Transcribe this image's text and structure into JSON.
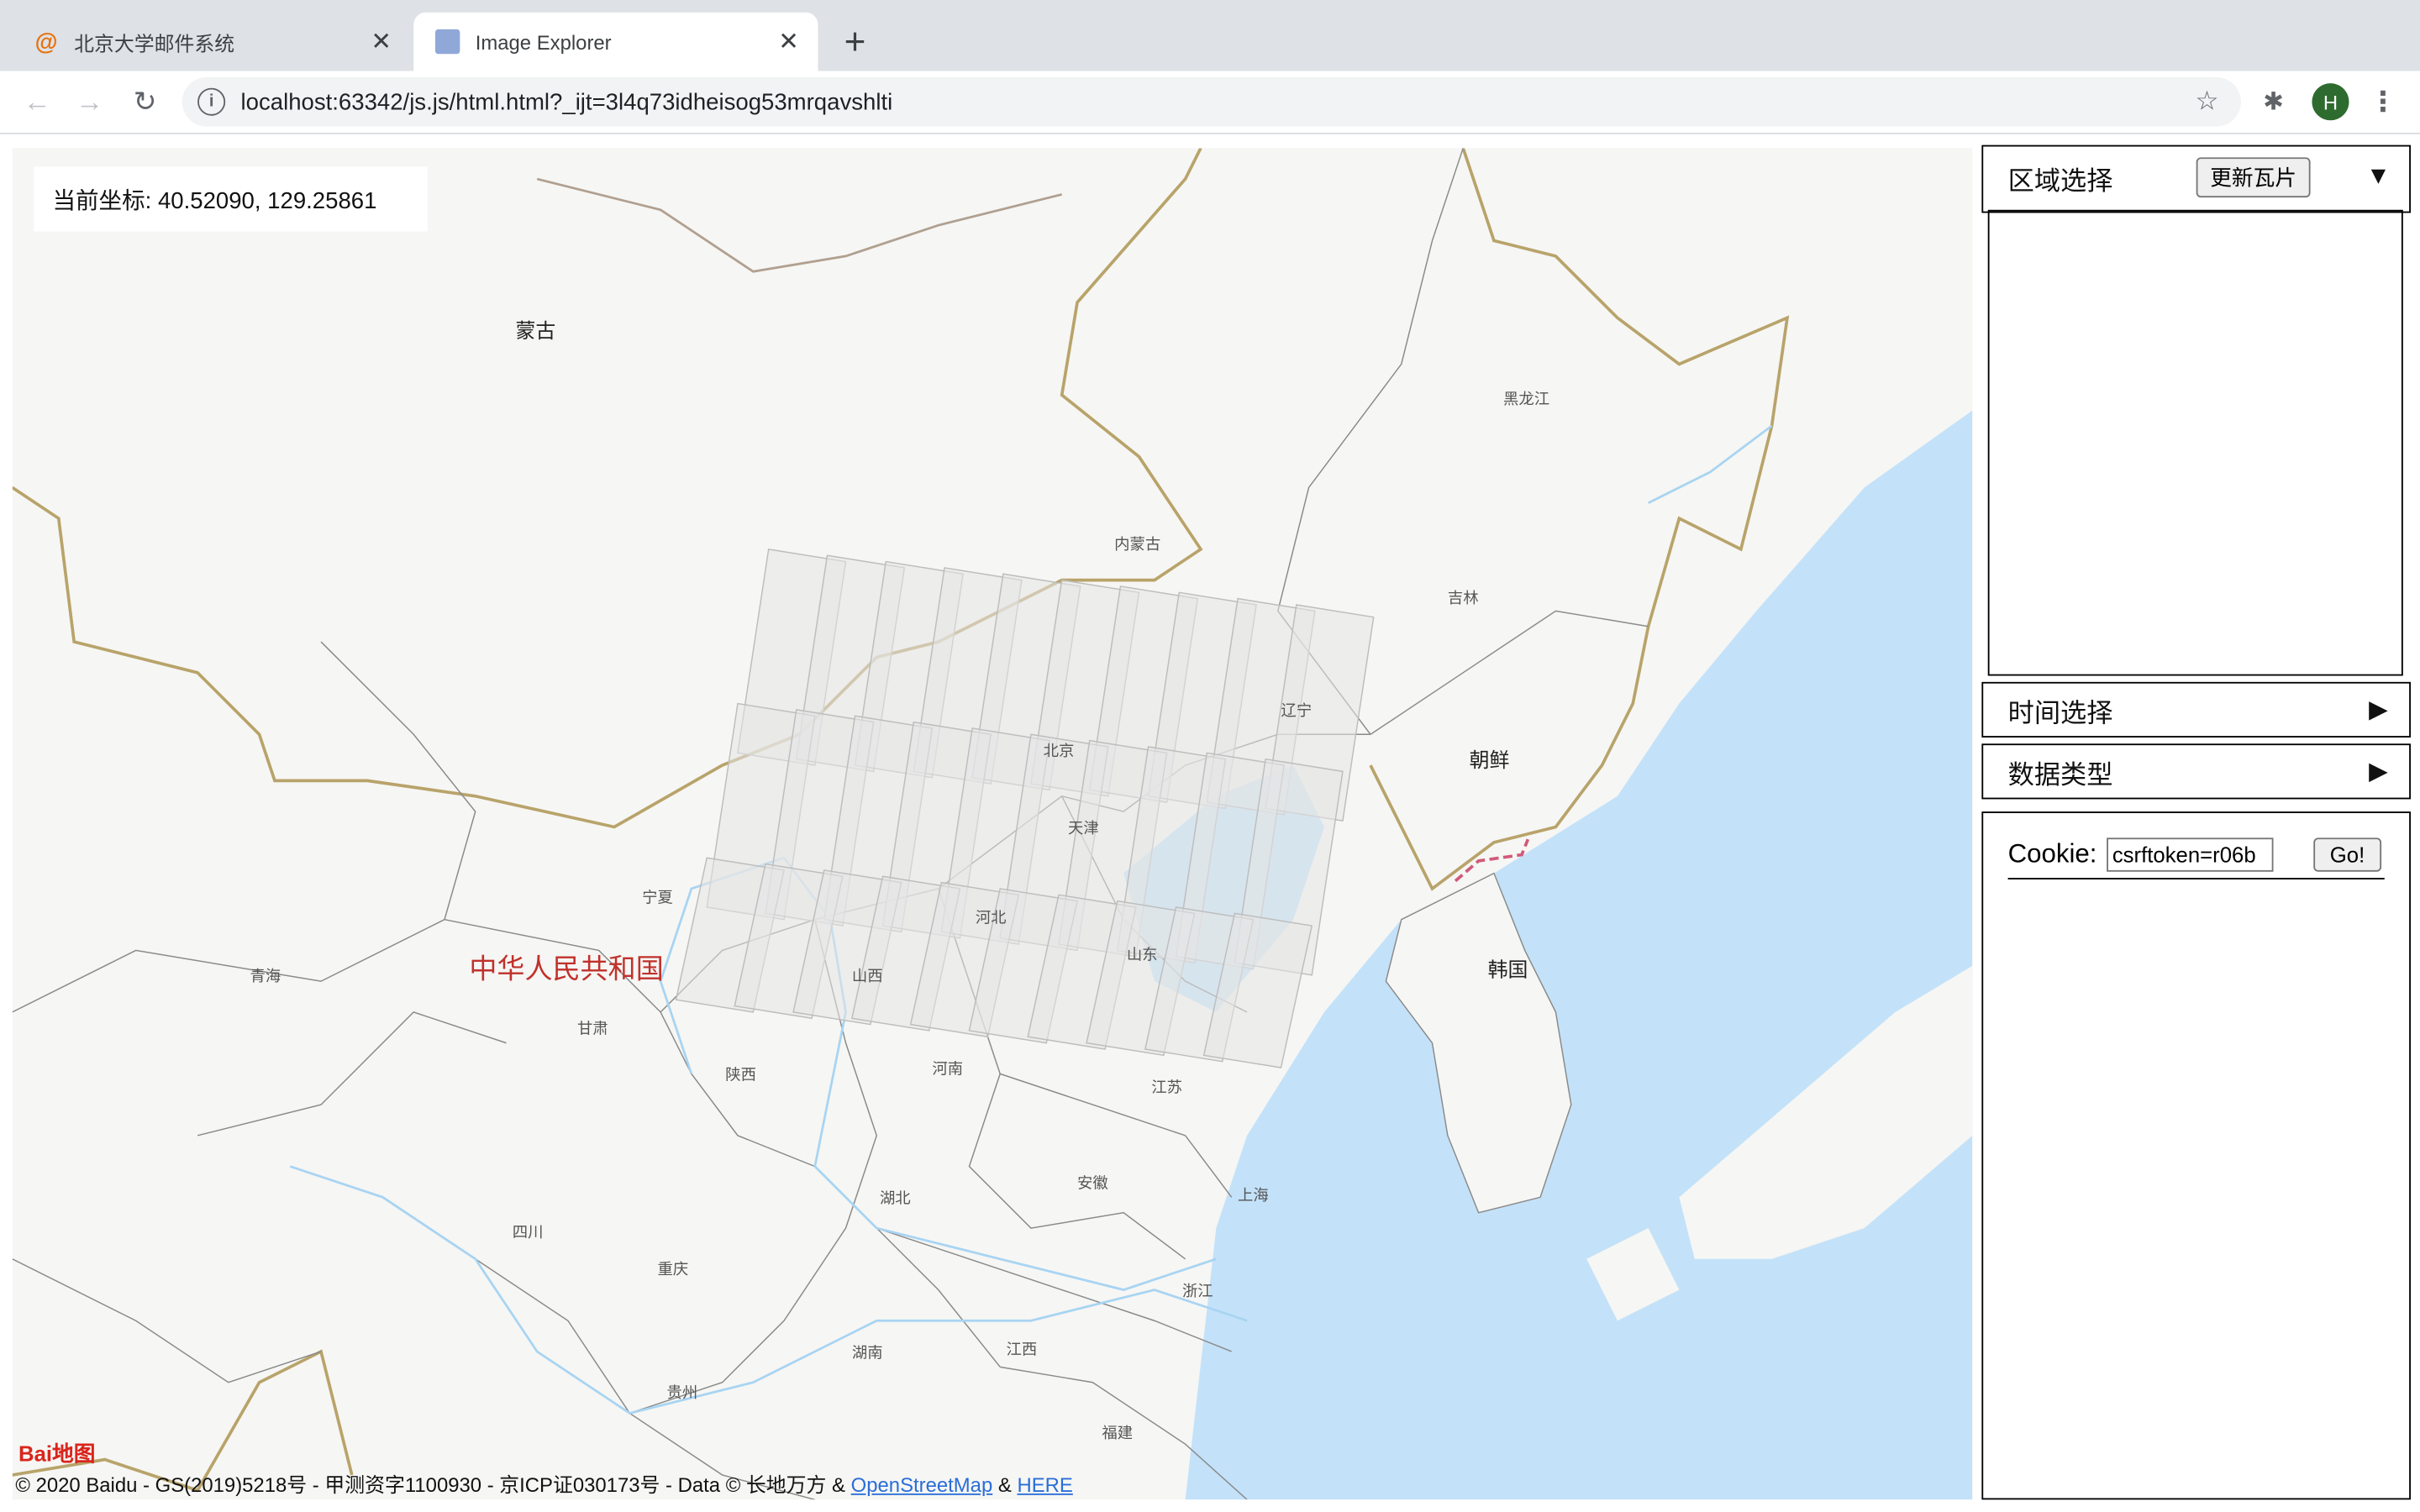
{
  "browser": {
    "tabs": [
      {
        "title": "北京大学邮件系统",
        "favicon": "at-icon",
        "active": false
      },
      {
        "title": "Image Explorer",
        "favicon": "anime-avatar-icon",
        "active": true
      }
    ],
    "url": "localhost:63342/js.js/html.html?_ijt=3l4q73idheisog53mrqavshlti",
    "profile_initial": "H"
  },
  "map": {
    "coordinate_label": "当前坐标: 40.52090, 129.25861",
    "labels": {
      "mongolia": "蒙古",
      "heilongjiang": "黑龙江",
      "neimenggu": "内蒙古",
      "jilin": "吉林",
      "liaoning": "辽宁",
      "beijing": "北京",
      "tianjin": "天津",
      "hebei": "河北",
      "shanxi": "山西",
      "shandong": "山东",
      "ningxia": "宁夏",
      "qinghai": "青海",
      "gansu": "甘肃",
      "shaanxi": "陕西",
      "henan": "河南",
      "jiangsu": "江苏",
      "anhui": "安徽",
      "shanghai": "上海",
      "hubei": "湖北",
      "sichuan": "四川",
      "chongqing": "重庆",
      "zhejiang": "浙江",
      "hunan": "湖南",
      "jiangxi": "江西",
      "guizhou": "贵州",
      "fujian": "福建",
      "north_korea": "朝鲜",
      "south_korea": "韩国",
      "china": "中华人民共和国"
    },
    "copyright_prefix": "© 2020 Baidu - GS(2019)5218号 - 甲测资字1100930 - 京ICP证030173号 - Data © 长地万方 &",
    "copyright_link1": "OpenStreetMap",
    "copyright_and": "&",
    "copyright_link2": "HERE",
    "logo_text": "Bai地图",
    "colors": {
      "water": "#c3e2f9",
      "land": "#f6f6f4",
      "border": "#b8a36a",
      "province": "#8a8a8a",
      "tile": "#bdbdbd"
    }
  },
  "panel": {
    "region": {
      "label": "区域选择",
      "button": "更新瓦片",
      "arrow": "▼"
    },
    "time": {
      "label": "时间选择",
      "arrow": "▶"
    },
    "datatype": {
      "label": "数据类型",
      "arrow": "▶"
    },
    "cookie": {
      "label": "Cookie:",
      "value": "csrftoken=r06b",
      "go": "Go!"
    }
  }
}
